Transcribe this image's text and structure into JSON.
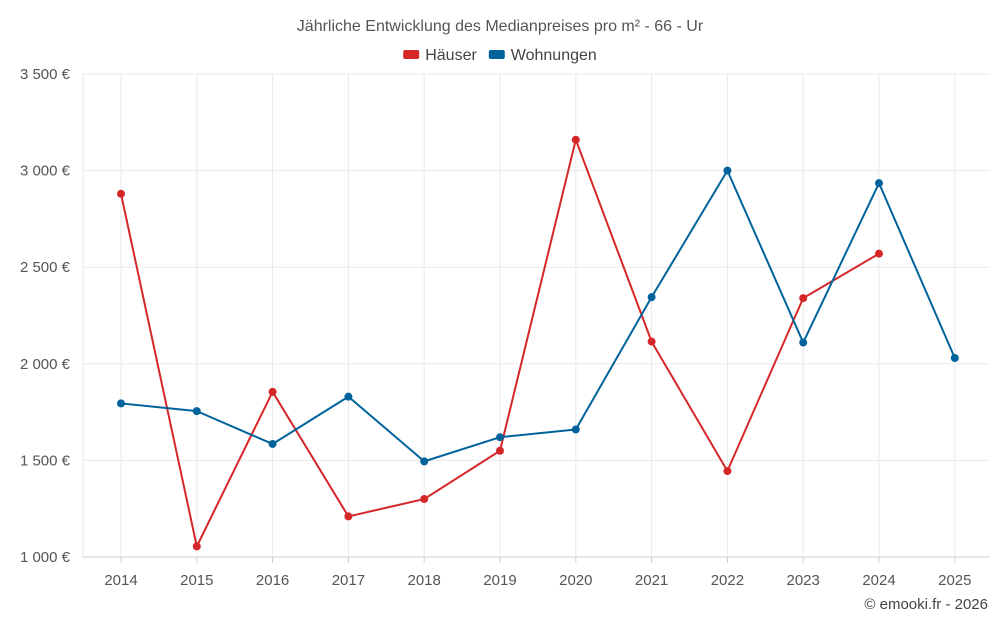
{
  "chart_data": {
    "type": "line",
    "title": "Jährliche Entwicklung des Medianpreises pro m² - 66 - Ur",
    "categories": [
      "2014",
      "2015",
      "2016",
      "2017",
      "2018",
      "2019",
      "2020",
      "2021",
      "2022",
      "2023",
      "2024",
      "2025"
    ],
    "series": [
      {
        "name": "Häuser",
        "color": "#d62728",
        "values": [
          2880,
          1055,
          1855,
          1210,
          1300,
          1550,
          3160,
          2115,
          1445,
          2340,
          2570,
          null
        ]
      },
      {
        "name": "Wohnungen",
        "color": "#00639b",
        "values": [
          1795,
          1755,
          1585,
          1830,
          1495,
          1620,
          1660,
          2345,
          3000,
          2110,
          2935,
          2030
        ]
      }
    ],
    "ylim": [
      1000,
      3500
    ],
    "yticks": [
      1000,
      1500,
      2000,
      2500,
      3000,
      3500
    ],
    "ytick_labels": [
      "1 000 €",
      "1 500 €",
      "2 000 €",
      "2 500 €",
      "3 000 €",
      "3 500 €"
    ],
    "xlabel": "",
    "ylabel": "",
    "grid": true,
    "legend_position": "top-center"
  },
  "credit": "© emooki.fr - 2026"
}
